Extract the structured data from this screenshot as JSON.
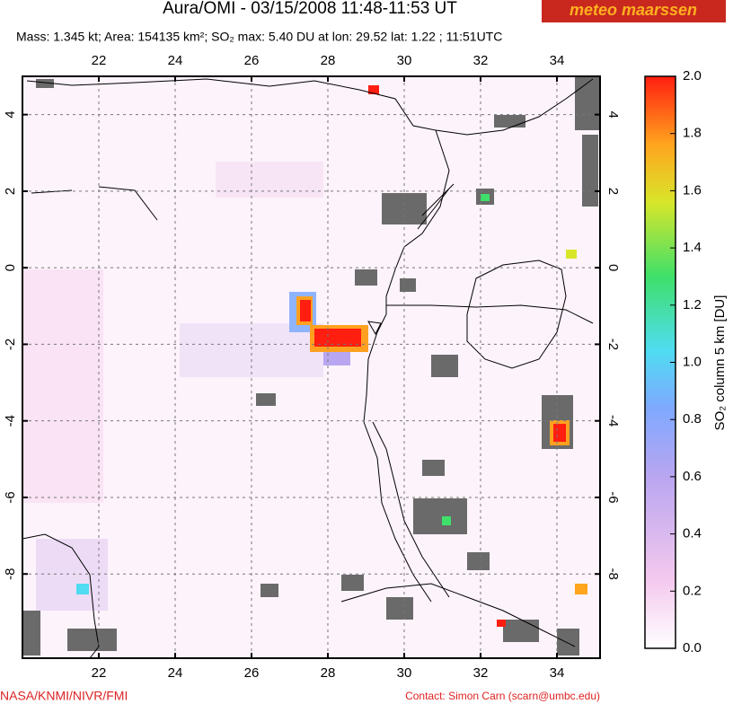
{
  "header": {
    "title": "Aura/OMI - 03/15/2008 11:48-11:53 UT",
    "logo": "meteo maarssen",
    "subtitle": "Mass: 1.345 kt; Area: 154135 km²; SO₂ max: 5.40 DU at lon: 29.52 lat: 1.22 ; 11:51UTC"
  },
  "map": {
    "xlim": [
      20,
      35.13
    ],
    "ylim": [
      -10.2,
      5
    ],
    "xticks": [
      22,
      24,
      26,
      28,
      30,
      32,
      34
    ],
    "yticks": [
      4,
      2,
      0,
      -2,
      -4,
      -6,
      -8
    ],
    "grid": true
  },
  "colorbar": {
    "label": "SO₂ column 5 km [DU]",
    "lim": [
      0,
      2
    ],
    "ticks": [
      {
        "value": 0,
        "label": "0.0"
      },
      {
        "value": 0.2,
        "label": "0.2"
      },
      {
        "value": 0.4,
        "label": "0.4"
      },
      {
        "value": 0.6,
        "label": "0.6"
      },
      {
        "value": 0.8,
        "label": "0.8"
      },
      {
        "value": 1,
        "label": "1.0"
      },
      {
        "value": 1.2,
        "label": "1.2"
      },
      {
        "value": 1.4,
        "label": "1.4"
      },
      {
        "value": 1.6,
        "label": "1.6"
      },
      {
        "value": 1.8,
        "label": "1.8"
      },
      {
        "value": 2,
        "label": "2.0"
      }
    ]
  },
  "footer": {
    "credit": "NASA/KNMI/NIVR/FMI",
    "contact": "Contact: Simon Carn (scarn@umbc.edu)"
  }
}
